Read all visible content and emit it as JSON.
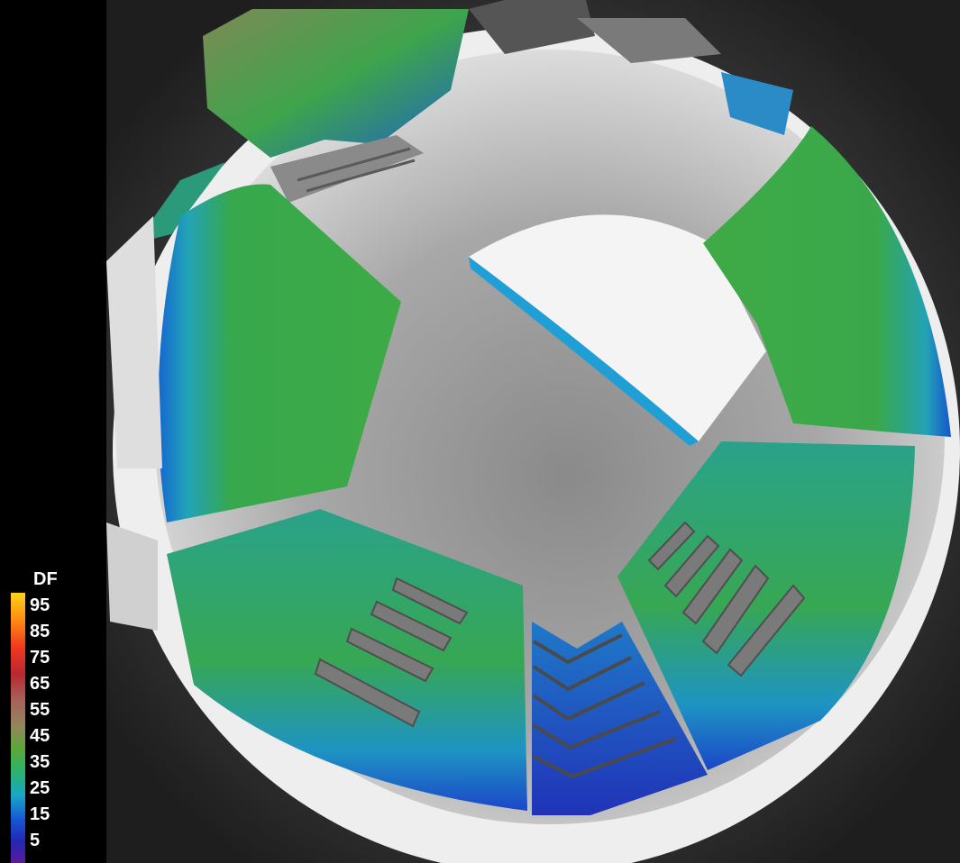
{
  "legend": {
    "title": "DF",
    "labels": [
      "95",
      "85",
      "75",
      "65",
      "55",
      "45",
      "35",
      "25",
      "15",
      "5"
    ]
  },
  "colors": {
    "background": "#000000",
    "floor": "#9a9a9a",
    "white_surface": "#f2f2f2",
    "df_green": "#3aa847",
    "df_blue": "#1658d8",
    "df_cyan": "#19a6c6"
  }
}
